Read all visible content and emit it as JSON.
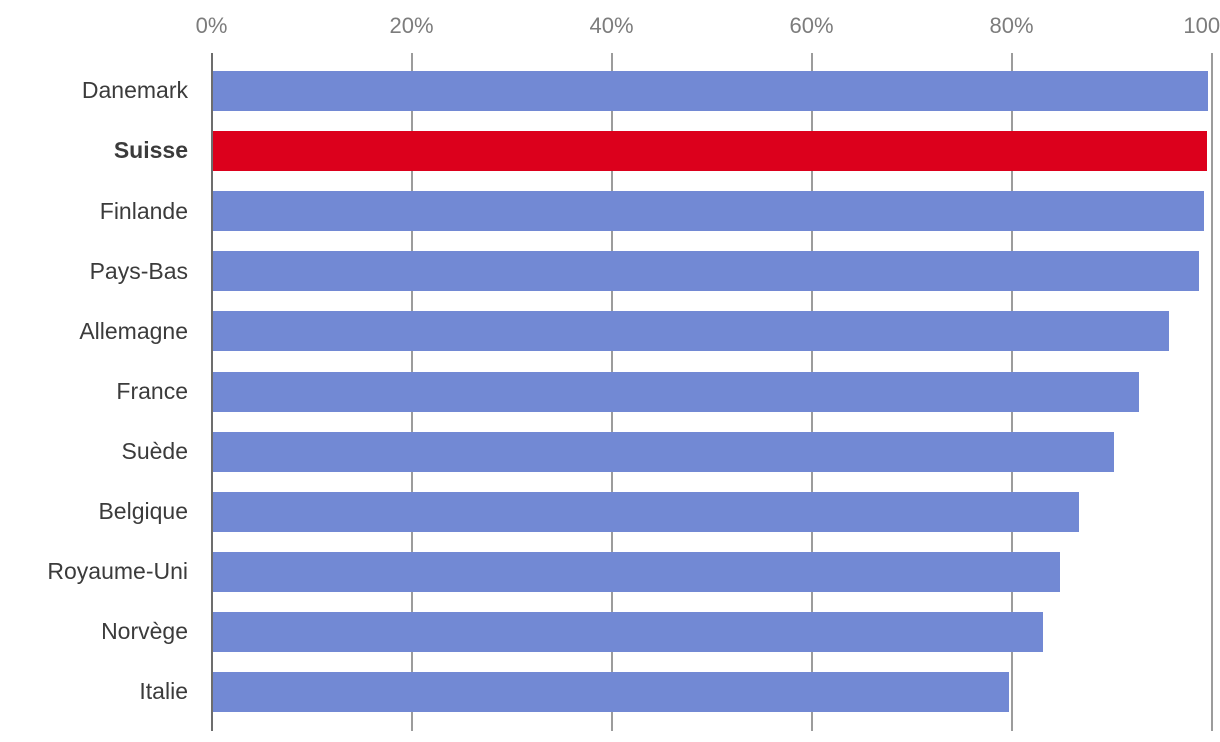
{
  "chart_data": {
    "type": "bar",
    "orientation": "horizontal",
    "title": "",
    "categories": [
      "Danemark",
      "Suisse",
      "Finlande",
      "Pays-Bas",
      "Allemagne",
      "France",
      "Suède",
      "Belgique",
      "Royaume-Uni",
      "Norvège",
      "Italie"
    ],
    "values": [
      99.5,
      99.4,
      99.1,
      98.6,
      95.6,
      92.6,
      90.1,
      86.6,
      84.7,
      83.0,
      79.6
    ],
    "highlighted_category": "Suisse",
    "unit": "%",
    "xlim": [
      0,
      100
    ],
    "x_ticks": [
      0,
      20,
      40,
      60,
      80,
      100
    ],
    "x_tick_labels": [
      "0%",
      "20%",
      "40%",
      "60%",
      "80%",
      "100%"
    ],
    "grid": true,
    "legend": false,
    "colors": {
      "bar": "#7289d4",
      "highlight": "#dc001c",
      "axis_line": "#6d6d6d",
      "gridline": "#9c9c9c",
      "tick_label": "#7c7c7c",
      "category_label": "#3b3b3b"
    }
  }
}
